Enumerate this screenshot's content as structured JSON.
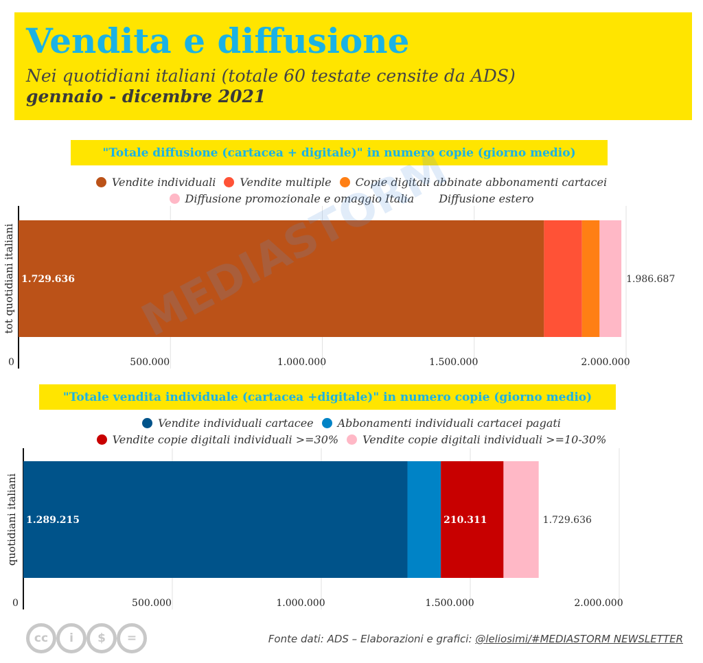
{
  "header": {
    "title": "Vendita e diffusione",
    "subtitle": "Nei quotidiani italiani (totale 60 testate censite da ADS)",
    "period": "gennaio - dicembre 2021"
  },
  "colors": {
    "header_bg": "#ffe500",
    "title_blue": "#1ab2e5"
  },
  "chart_data": [
    {
      "type": "bar",
      "orientation": "horizontal",
      "stacked": true,
      "title": "\"Totale diffusione (cartacea + digitale)\" in numero copie (giorno medio)",
      "ylabel": "tot quotidiani italiani",
      "categories": [
        "tot quotidiani italiani"
      ],
      "xlim": [
        0,
        2000000
      ],
      "ticks": [
        0,
        500000,
        1000000,
        1500000,
        2000000
      ],
      "tick_labels": [
        "0",
        "500.000",
        "1.000.000",
        "1.500.000",
        "2.000.000"
      ],
      "grid": true,
      "legend_position": "top",
      "series": [
        {
          "name": "Vendite individuali",
          "values": [
            1729636
          ],
          "color": "#bb5218",
          "label": "1.729.636"
        },
        {
          "name": "Vendite multiple",
          "values": [
            125000
          ],
          "color": "#ff5236",
          "label": ""
        },
        {
          "name": "Copie digitali abbinate abbonamenti cartacei",
          "values": [
            58000
          ],
          "color": "#ff7f14",
          "label": ""
        },
        {
          "name": "Diffusione promozionale e omaggio Italia",
          "values": [
            72000
          ],
          "color": "#ffb8c6",
          "label": ""
        },
        {
          "name": "Diffusione estero",
          "values": [
            2051
          ],
          "color": "#ffffff",
          "label": ""
        }
      ],
      "total_label": "1.986.687"
    },
    {
      "type": "bar",
      "orientation": "horizontal",
      "stacked": true,
      "title": "\"Totale vendita individuale (cartacea +digitale)\" in numero copie (giorno medio)",
      "ylabel": "quotidiani italiani",
      "categories": [
        "quotidiani italiani"
      ],
      "xlim": [
        0,
        2000000
      ],
      "ticks": [
        0,
        500000,
        1000000,
        1500000,
        2000000
      ],
      "tick_labels": [
        "0",
        "500.000",
        "1.000.000",
        "1.500.000",
        "2.000.000"
      ],
      "grid": true,
      "legend_position": "top",
      "series": [
        {
          "name": "Vendite individuali cartacee",
          "values": [
            1289215
          ],
          "color": "#00538a",
          "label": "1.289.215"
        },
        {
          "name": "Abbonamenti individuali cartacei pagati",
          "values": [
            112000
          ],
          "color": "#0083c6",
          "label": ""
        },
        {
          "name": "Vendite copie digitali individuali >=30%",
          "values": [
            210311
          ],
          "color": "#c80000",
          "label": "210.311"
        },
        {
          "name": "Vendite copie digitali individuali >=10-30%",
          "values": [
            118110
          ],
          "color": "#ffb8c6",
          "label": ""
        }
      ],
      "total_label": "1.729.636"
    }
  ],
  "watermark": "MEDIASTORM",
  "footer": {
    "icons": [
      "cc-icon",
      "by-icon",
      "nc-icon",
      "nd-icon"
    ],
    "icon_glyphs": [
      "cc",
      "i",
      "$",
      "="
    ],
    "source_prefix": "Fonte dati: ADS – Elaborazioni e grafici: ",
    "source_handle": "@leliosimi/#MEDIASTORM NEWSLETTER"
  }
}
